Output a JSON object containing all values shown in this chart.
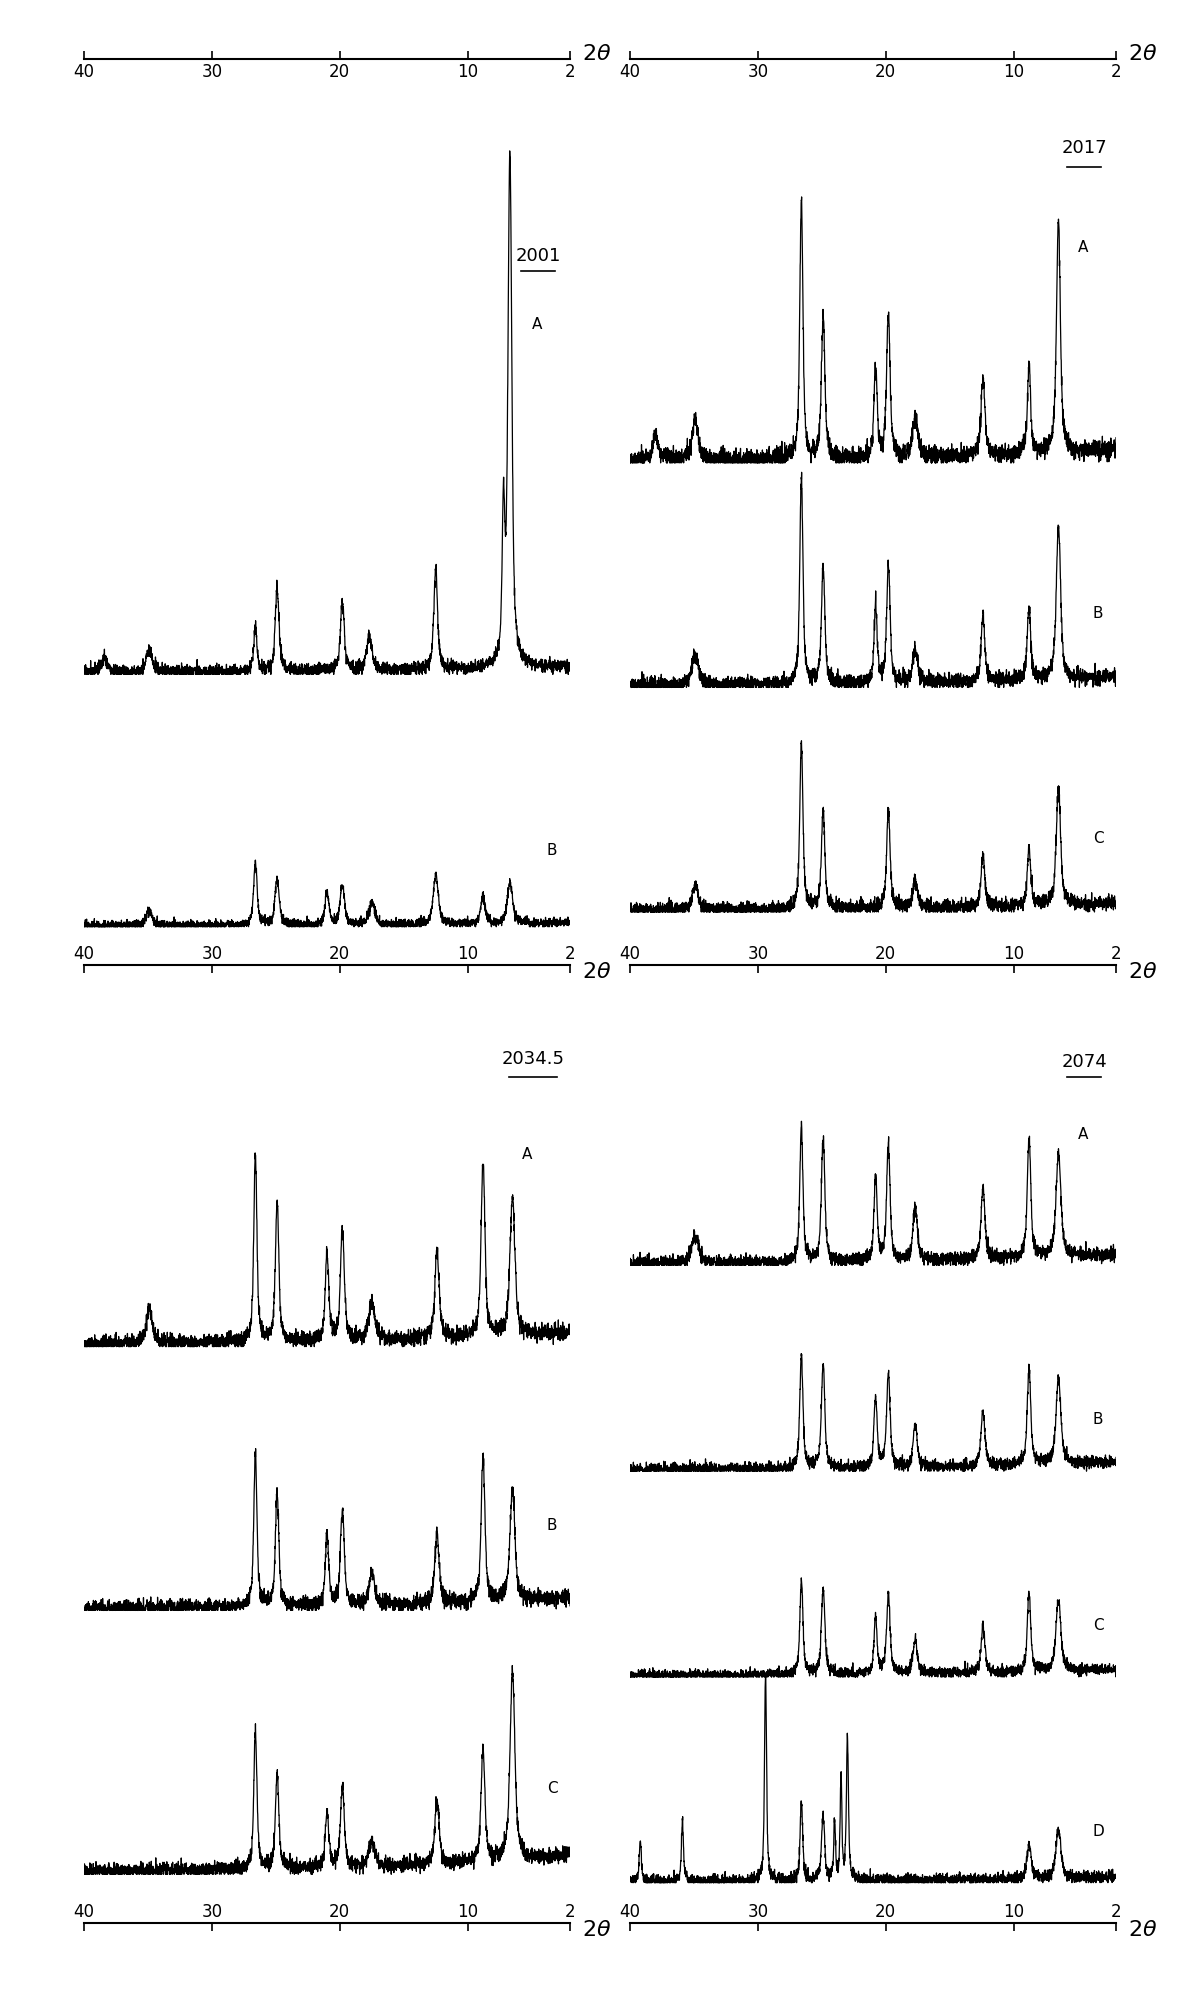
{
  "fig_width": 12.0,
  "fig_height": 20.08,
  "bg_color": "#ffffff",
  "x_ticks": [
    40,
    30,
    20,
    10,
    2
  ],
  "x_min": 2,
  "x_max": 40,
  "panels": [
    {
      "label": "2001",
      "traces": [
        "A",
        "B"
      ]
    },
    {
      "label": "2017",
      "traces": [
        "A",
        "B",
        "C"
      ]
    },
    {
      "label": "2034.5",
      "traces": [
        "A",
        "B",
        "C"
      ]
    },
    {
      "label": "2074",
      "traces": [
        "A",
        "B",
        "C",
        "D"
      ]
    }
  ]
}
